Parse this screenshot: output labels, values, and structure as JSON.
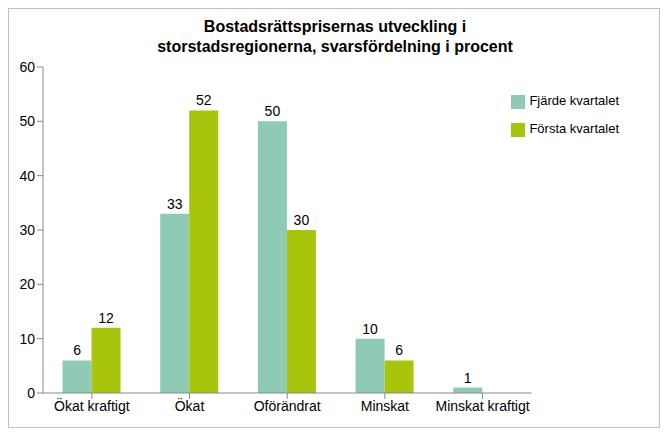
{
  "chart_data": {
    "type": "bar",
    "title": "Bostadsrättsprisernas utveckling i storstadsregionerna, svarsfördelning i procent",
    "categories": [
      "Ökat kraftigt",
      "Ökat",
      "Oförändrat",
      "Minskat",
      "Minskat kraftigt"
    ],
    "series": [
      {
        "name": "Fjärde kvartalet",
        "color": "#8fcbb4",
        "values": [
          6,
          33,
          50,
          10,
          1
        ]
      },
      {
        "name": "Första kvartalet",
        "color": "#a8c40c",
        "values": [
          12,
          52,
          30,
          6,
          0
        ]
      }
    ],
    "ylim": [
      0,
      60
    ],
    "yticks": [
      0,
      10,
      20,
      30,
      40,
      50,
      60
    ],
    "grid": false,
    "legend": "right",
    "data_labels": true
  }
}
